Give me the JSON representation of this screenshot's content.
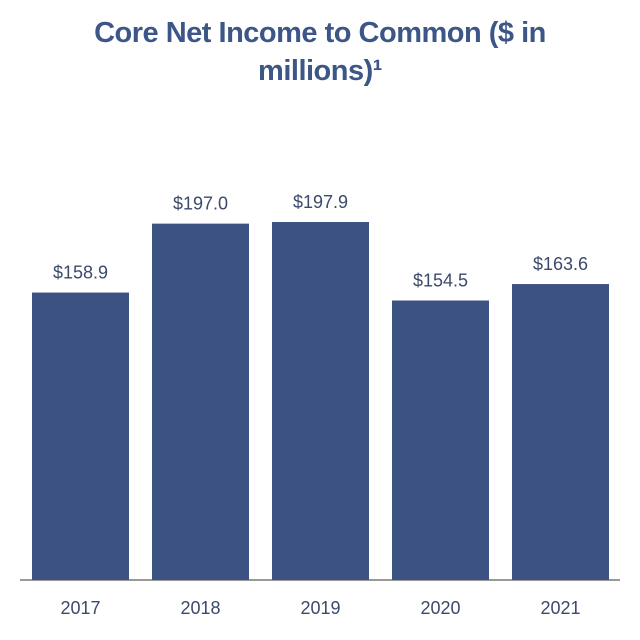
{
  "chart_data": {
    "type": "bar",
    "title": "Core Net Income to Common ($ in millions)¹",
    "categories": [
      "2017",
      "2018",
      "2019",
      "2020",
      "2021"
    ],
    "values": [
      158.9,
      197.0,
      197.9,
      154.5,
      163.6
    ],
    "value_labels": [
      "$158.9",
      "$197.0",
      "$197.9",
      "$154.5",
      "$163.6"
    ],
    "color": "#3c5283"
  }
}
